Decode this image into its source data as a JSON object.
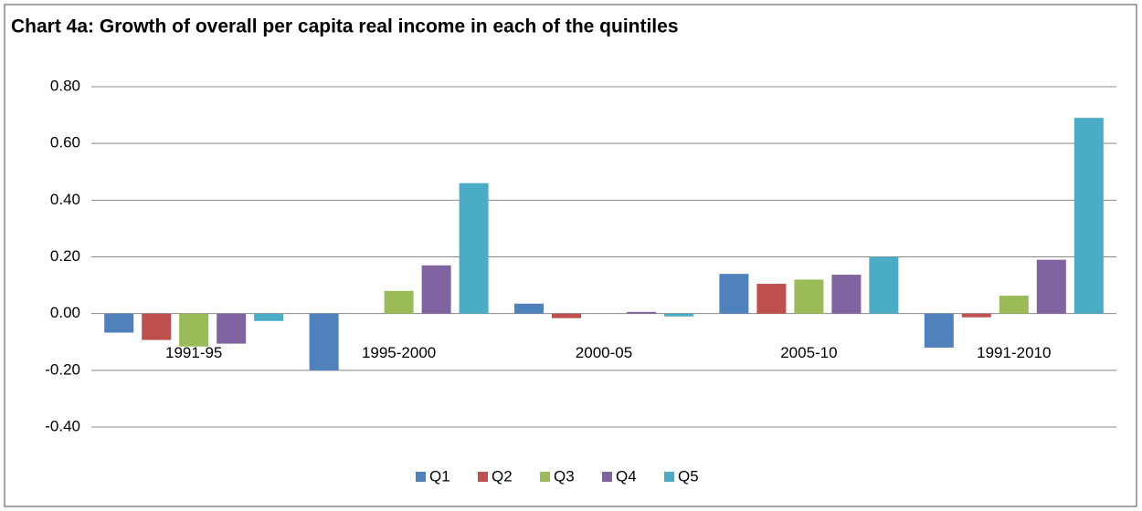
{
  "chart_data": {
    "type": "bar",
    "title": "Chart 4a: Growth of overall per capita real income in each of the quintiles",
    "categories": [
      "1991-95",
      "1995-2000",
      "2000-05",
      "2005-10",
      "1991-2010"
    ],
    "series": [
      {
        "name": "Q1",
        "color": "#4f81bd",
        "values": [
          -0.067,
          -0.2,
          0.035,
          0.14,
          -0.12
        ]
      },
      {
        "name": "Q2",
        "color": "#c0504d",
        "values": [
          -0.093,
          0,
          -0.016,
          0.105,
          -0.013
        ]
      },
      {
        "name": "Q3",
        "color": "#9bbb59",
        "values": [
          -0.116,
          0.08,
          0,
          0.12,
          0.063
        ]
      },
      {
        "name": "Q4",
        "color": "#8064a2",
        "values": [
          -0.106,
          0.17,
          0.006,
          0.137,
          0.19
        ]
      },
      {
        "name": "Q5",
        "color": "#4bacc6",
        "values": [
          -0.026,
          0.46,
          -0.01,
          0.2,
          0.69
        ]
      }
    ],
    "ylim": [
      -0.4,
      0.8
    ],
    "yticks": [
      {
        "value": -0.4,
        "label": "-0.40"
      },
      {
        "value": -0.2,
        "label": "-0.20"
      },
      {
        "value": 0,
        "label": "0.00"
      },
      {
        "value": 0.2,
        "label": "0.20"
      },
      {
        "value": 0.4,
        "label": "0.40"
      },
      {
        "value": 0.6,
        "label": "0.60"
      },
      {
        "value": 0.8,
        "label": "0.80"
      }
    ],
    "grid": true,
    "legend": "bottom"
  }
}
